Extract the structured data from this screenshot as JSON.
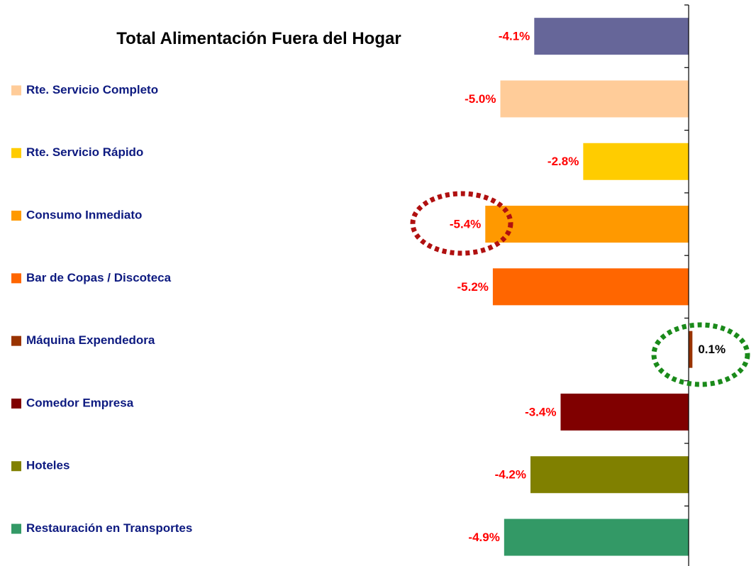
{
  "chart_data": {
    "type": "bar",
    "orientation": "horizontal",
    "categories": [
      "Total Alimentación Fuera  del Hogar",
      "Rte. Servicio Completo",
      "Rte. Servicio Rápido",
      "Consumo Inmediato",
      "Bar de Copas / Discoteca",
      "Máquina Expendedora",
      "Comedor Empresa",
      "Hoteles",
      "Restauración en Transportes"
    ],
    "values": [
      -4.1,
      -5.0,
      -2.8,
      -5.4,
      -5.2,
      0.1,
      -3.4,
      -4.2,
      -4.9
    ],
    "value_labels": [
      "-4.1%",
      "-5.0%",
      "-2.8%",
      "-5.4%",
      "-5.2%",
      "0.1%",
      "-3.4%",
      "-4.2%",
      "-4.9%"
    ],
    "colors": [
      "#666699",
      "#ffcc99",
      "#ffcc00",
      "#ff9900",
      "#ff6600",
      "#993300",
      "#800000",
      "#808000",
      "#339966"
    ],
    "xlim": [
      -18.2,
      1.7
    ]
  }
}
